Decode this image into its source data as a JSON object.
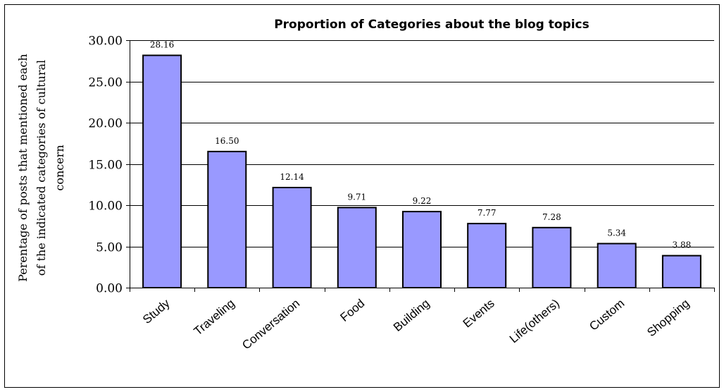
{
  "chart_data": {
    "type": "bar",
    "title": "Proportion of Categories about the blog topics",
    "ylabel_lines": [
      "Perentage of posts that mentioned each",
      "of the indicated categories of cultural",
      "concern"
    ],
    "xlabel": "",
    "categories": [
      "Study",
      "Traveling",
      "Conversation",
      "Food",
      "Building",
      "Events",
      "Life(others)",
      "Custom",
      "Shopping"
    ],
    "values": [
      28.16,
      16.5,
      12.14,
      9.71,
      9.22,
      7.77,
      7.28,
      5.34,
      3.88
    ],
    "data_labels": [
      "28.16",
      "16.50",
      "12.14",
      "9.71",
      "9.22",
      "7.77",
      "7.28",
      "5.34",
      "3.88"
    ],
    "y_ticks": [
      "0.00",
      "5.00",
      "10.00",
      "15.00",
      "20.00",
      "25.00",
      "30.00"
    ],
    "ylim": [
      0,
      30
    ],
    "grid": true,
    "legend": "none",
    "bar_color": "#9999ff",
    "bar_edge_color": "#000000"
  }
}
